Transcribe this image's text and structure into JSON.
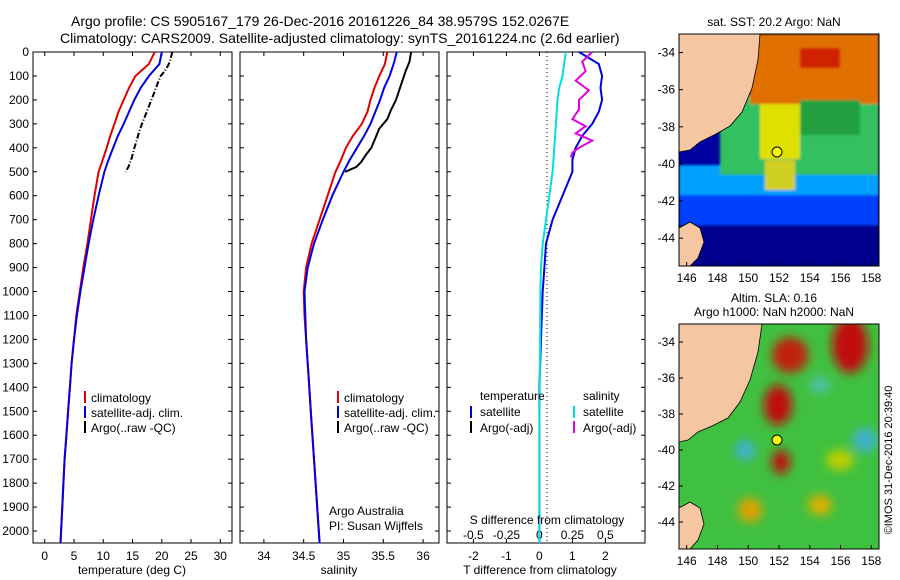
{
  "header": {
    "line1": "Argo profile: CS 5905167_179 26-Dec-2016 20161226_84 38.9579S 152.0267E",
    "line2": "Climatology: CARS2009. Satellite-adjusted climatology: synTS_20161224.nc (2.6d earlier)"
  },
  "side_label": "©IMOS 31-Dec-2016 20:39:40",
  "colors": {
    "climatology": "#e00000",
    "satellite": "#0000e0",
    "argo": "#000000",
    "s_satellite": "#00e0e0",
    "s_argo": "#e000e0",
    "land": "#f5c6a0",
    "marker": "#ffff00"
  },
  "chart_data": [
    {
      "type": "line",
      "id": "temperature",
      "xlabel": "temperature (deg C)",
      "xlim": [
        -2,
        32
      ],
      "xticks": [
        0,
        5,
        10,
        15,
        20,
        25,
        30
      ],
      "ylim": [
        0,
        2050
      ],
      "yticks": [
        0,
        100,
        200,
        300,
        400,
        500,
        600,
        700,
        800,
        900,
        1000,
        1100,
        1200,
        1300,
        1400,
        1500,
        1600,
        1700,
        1800,
        1900,
        2000
      ],
      "inverted_y": true,
      "legend": [
        "climatology",
        "satellite-adj. clim.",
        "Argo(..raw -QC)"
      ],
      "series": [
        {
          "name": "climatology",
          "color": "#e00000",
          "points": [
            [
              18.8,
              0
            ],
            [
              17.8,
              50
            ],
            [
              15.5,
              100
            ],
            [
              14.4,
              150
            ],
            [
              13.5,
              200
            ],
            [
              12.6,
              250
            ],
            [
              11.9,
              300
            ],
            [
              11.2,
              350
            ],
            [
              10.6,
              400
            ],
            [
              9.9,
              450
            ],
            [
              9.2,
              500
            ],
            [
              8.5,
              600
            ],
            [
              7.9,
              700
            ],
            [
              7.3,
              800
            ],
            [
              6.6,
              900
            ],
            [
              6.0,
              1000
            ],
            [
              5.4,
              1100
            ],
            [
              5.0,
              1200
            ],
            [
              4.6,
              1300
            ],
            [
              4.3,
              1400
            ],
            [
              4.0,
              1500
            ],
            [
              3.7,
              1600
            ],
            [
              3.4,
              1700
            ],
            [
              3.2,
              1800
            ],
            [
              3.0,
              1900
            ],
            [
              2.8,
              2000
            ],
            [
              2.7,
              2050
            ]
          ]
        },
        {
          "name": "satellite-adj. clim.",
          "color": "#0000e0",
          "points": [
            [
              20.0,
              0
            ],
            [
              19.6,
              50
            ],
            [
              17.8,
              100
            ],
            [
              16.4,
              150
            ],
            [
              15.3,
              200
            ],
            [
              14.4,
              250
            ],
            [
              13.5,
              300
            ],
            [
              12.5,
              350
            ],
            [
              11.7,
              400
            ],
            [
              10.9,
              450
            ],
            [
              10.2,
              500
            ],
            [
              9.2,
              600
            ],
            [
              8.3,
              700
            ],
            [
              7.5,
              800
            ],
            [
              6.8,
              900
            ],
            [
              6.1,
              1000
            ],
            [
              5.5,
              1100
            ],
            [
              5.0,
              1200
            ],
            [
              4.6,
              1300
            ],
            [
              4.3,
              1400
            ],
            [
              4.0,
              1500
            ],
            [
              3.7,
              1600
            ],
            [
              3.4,
              1700
            ],
            [
              3.2,
              1800
            ],
            [
              3.0,
              1900
            ],
            [
              2.8,
              2000
            ],
            [
              2.7,
              2050
            ]
          ]
        },
        {
          "name": "Argo(..raw -QC)",
          "color": "#000000",
          "dashed": true,
          "points": [
            [
              21.8,
              0
            ],
            [
              21.6,
              20
            ],
            [
              21.4,
              40
            ],
            [
              21.0,
              60
            ],
            [
              20.5,
              80
            ],
            [
              19.8,
              100
            ],
            [
              19.3,
              130
            ],
            [
              18.7,
              170
            ],
            [
              17.9,
              220
            ],
            [
              17.1,
              270
            ],
            [
              16.3,
              320
            ],
            [
              15.7,
              370
            ],
            [
              15.2,
              410
            ],
            [
              14.9,
              440
            ],
            [
              14.3,
              480
            ],
            [
              13.8,
              500
            ]
          ]
        }
      ]
    },
    {
      "type": "line",
      "id": "salinity",
      "xlabel": "salinity",
      "xlim": [
        33.7,
        36.2
      ],
      "xticks": [
        34,
        34.5,
        35,
        35.5,
        36
      ],
      "ylim": [
        0,
        2050
      ],
      "inverted_y": true,
      "legend": [
        "climatology",
        "satellite-adj. clim.",
        "Argo(..raw -QC)"
      ],
      "note_line1": "Argo Australia",
      "note_line2": "PI: Susan Wijffels",
      "series": [
        {
          "name": "climatology",
          "color": "#e00000",
          "points": [
            [
              35.55,
              0
            ],
            [
              35.52,
              50
            ],
            [
              35.45,
              100
            ],
            [
              35.39,
              150
            ],
            [
              35.34,
              200
            ],
            [
              35.3,
              250
            ],
            [
              35.23,
              300
            ],
            [
              35.12,
              350
            ],
            [
              35.03,
              400
            ],
            [
              34.97,
              450
            ],
            [
              34.9,
              500
            ],
            [
              34.8,
              600
            ],
            [
              34.7,
              700
            ],
            [
              34.6,
              800
            ],
            [
              34.53,
              900
            ],
            [
              34.5,
              1000
            ],
            [
              34.51,
              1100
            ],
            [
              34.53,
              1200
            ],
            [
              34.55,
              1300
            ],
            [
              34.57,
              1400
            ],
            [
              34.59,
              1500
            ],
            [
              34.61,
              1600
            ],
            [
              34.63,
              1700
            ],
            [
              34.65,
              1800
            ],
            [
              34.67,
              1900
            ],
            [
              34.69,
              2000
            ],
            [
              34.7,
              2050
            ]
          ]
        },
        {
          "name": "satellite-adj. clim.",
          "color": "#0000e0",
          "points": [
            [
              35.67,
              0
            ],
            [
              35.63,
              50
            ],
            [
              35.58,
              100
            ],
            [
              35.51,
              150
            ],
            [
              35.46,
              200
            ],
            [
              35.4,
              250
            ],
            [
              35.34,
              300
            ],
            [
              35.26,
              350
            ],
            [
              35.17,
              400
            ],
            [
              35.08,
              450
            ],
            [
              35.0,
              500
            ],
            [
              34.86,
              600
            ],
            [
              34.74,
              700
            ],
            [
              34.63,
              800
            ],
            [
              34.55,
              900
            ],
            [
              34.51,
              1000
            ],
            [
              34.52,
              1100
            ],
            [
              34.53,
              1200
            ],
            [
              34.55,
              1300
            ],
            [
              34.57,
              1400
            ],
            [
              34.59,
              1500
            ],
            [
              34.61,
              1600
            ],
            [
              34.63,
              1700
            ],
            [
              34.65,
              1800
            ],
            [
              34.67,
              1900
            ],
            [
              34.69,
              2000
            ],
            [
              34.7,
              2050
            ]
          ]
        },
        {
          "name": "Argo(..raw -QC)",
          "color": "#000000",
          "points": [
            [
              35.85,
              0
            ],
            [
              35.83,
              40
            ],
            [
              35.78,
              80
            ],
            [
              35.74,
              120
            ],
            [
              35.7,
              160
            ],
            [
              35.66,
              200
            ],
            [
              35.6,
              240
            ],
            [
              35.55,
              280
            ],
            [
              35.45,
              320
            ],
            [
              35.4,
              360
            ],
            [
              35.35,
              400
            ],
            [
              35.28,
              430
            ],
            [
              35.22,
              460
            ],
            [
              35.16,
              480
            ],
            [
              35.02,
              500
            ]
          ]
        }
      ]
    },
    {
      "type": "line",
      "id": "difference",
      "xlabel": "T difference from climatology",
      "xlabel_top": "S difference from climatology",
      "xlim": [
        -2.8,
        3.2
      ],
      "xticks": [
        -2,
        -1,
        0,
        1,
        2
      ],
      "xticks_top": [
        -0.5,
        -0.25,
        0,
        0.25,
        0.5
      ],
      "ylim": [
        0,
        2050
      ],
      "inverted_y": true,
      "legend_t_title": "temperature",
      "legend_s_title": "salinity",
      "legend_t": [
        "satellite",
        "Argo(-adj)"
      ],
      "legend_s": [
        "satellite",
        "Argo(-adj)"
      ],
      "series": [
        {
          "name": "T satellite",
          "color": "#0000e0",
          "points": [
            [
              1.2,
              0
            ],
            [
              1.8,
              50
            ],
            [
              1.9,
              100
            ],
            [
              1.85,
              150
            ],
            [
              1.9,
              200
            ],
            [
              1.8,
              250
            ],
            [
              1.6,
              300
            ],
            [
              1.3,
              350
            ],
            [
              1.1,
              400
            ],
            [
              1.0,
              450
            ],
            [
              1.0,
              500
            ],
            [
              0.7,
              600
            ],
            [
              0.4,
              700
            ],
            [
              0.2,
              800
            ],
            [
              0.15,
              900
            ],
            [
              0.1,
              1000
            ],
            [
              0.05,
              1200
            ],
            [
              0.0,
              1400
            ],
            [
              0.0,
              1600
            ],
            [
              0.0,
              1800
            ],
            [
              0.0,
              2050
            ]
          ]
        },
        {
          "name": "S satellite",
          "color": "#00e0e0",
          "points": [
            [
              0.8,
              0
            ],
            [
              0.75,
              50
            ],
            [
              0.7,
              100
            ],
            [
              0.6,
              150
            ],
            [
              0.55,
              200
            ],
            [
              0.5,
              300
            ],
            [
              0.45,
              400
            ],
            [
              0.4,
              500
            ],
            [
              0.3,
              600
            ],
            [
              0.2,
              700
            ],
            [
              0.1,
              800
            ],
            [
              0.05,
              900
            ],
            [
              0.03,
              1000
            ],
            [
              0.02,
              1200
            ],
            [
              0.01,
              1400
            ],
            [
              0.0,
              1600
            ],
            [
              0.0,
              2050
            ]
          ]
        },
        {
          "name": "S Argo(-adj)",
          "color": "#e000e0",
          "points": [
            [
              1.6,
              0
            ],
            [
              1.3,
              40
            ],
            [
              1.4,
              80
            ],
            [
              1.1,
              120
            ],
            [
              1.5,
              160
            ],
            [
              1.2,
              200
            ],
            [
              1.2,
              240
            ],
            [
              1.0,
              280
            ],
            [
              1.4,
              310
            ],
            [
              1.1,
              340
            ],
            [
              1.6,
              370
            ],
            [
              1.2,
              400
            ],
            [
              1.0,
              420
            ],
            [
              0.95,
              440
            ]
          ]
        }
      ]
    },
    {
      "type": "heatmap",
      "id": "sst-map",
      "title": "sat. SST: 20.2  Argo: NaN",
      "xlim": [
        145.5,
        158.5
      ],
      "ylim": [
        -45.5,
        -33
      ],
      "xticks": [
        146,
        148,
        150,
        152,
        154,
        156,
        158
      ],
      "yticks": [
        -34,
        -36,
        -38,
        -40,
        -42,
        -44
      ],
      "marker": [
        152.03,
        -38.96
      ]
    },
    {
      "type": "heatmap",
      "id": "sla-map",
      "title_line1": "Altim. SLA: 0.16",
      "title_line2": "Argo h1000: NaN h2000: NaN",
      "xlim": [
        145.5,
        158.5
      ],
      "ylim": [
        -45.5,
        -33
      ],
      "xticks": [
        146,
        148,
        150,
        152,
        154,
        156,
        158
      ],
      "yticks": [
        -34,
        -36,
        -38,
        -40,
        -42,
        -44
      ],
      "marker": [
        152.03,
        -38.96
      ]
    }
  ]
}
